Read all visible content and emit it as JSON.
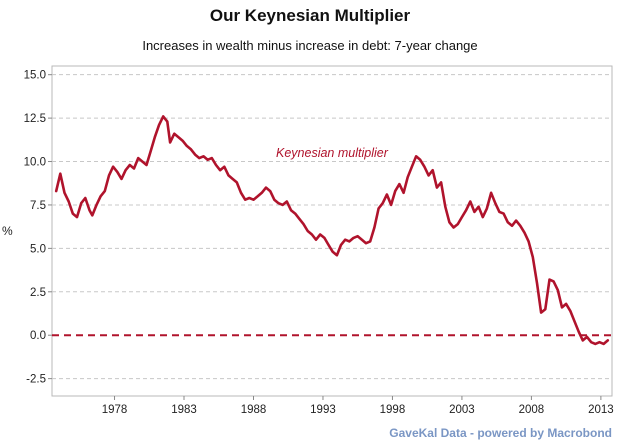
{
  "chart_data": {
    "type": "line",
    "title": "Our Keynesian Multiplier",
    "subtitle": "Increases in wealth  minus increase in debt: 7-year change",
    "ylabel": "%",
    "xlabel": "",
    "ylim": [
      -3.5,
      15.5
    ],
    "yticks": [
      "15.0",
      "12.5",
      "10.0",
      "7.5",
      "5.0",
      "2.5",
      "0.0",
      "-2.5"
    ],
    "ytick_values": [
      15,
      12.5,
      10,
      7.5,
      5,
      2.5,
      0,
      -2.5
    ],
    "xlim": [
      1973.5,
      2013.8
    ],
    "xticks": [
      "1978",
      "1983",
      "1988",
      "1993",
      "1998",
      "2003",
      "2008",
      "2013"
    ],
    "xtick_values": [
      1978,
      1983,
      1988,
      1993,
      1998,
      2003,
      2008,
      2013
    ],
    "grid": true,
    "reference_line": {
      "y": 0,
      "style": "dashed"
    },
    "annotation": "Keynesian multiplier",
    "source": "GaveKal Data - powered by Macrobond",
    "colors": {
      "series": "#b0132c",
      "grid": "#c8c8c8"
    },
    "series": [
      {
        "name": "Keynesian multiplier",
        "x": [
          1973.8,
          1974.1,
          1974.4,
          1974.7,
          1975.0,
          1975.3,
          1975.6,
          1975.9,
          1976.2,
          1976.4,
          1976.7,
          1977.0,
          1977.3,
          1977.6,
          1977.9,
          1978.2,
          1978.5,
          1978.8,
          1979.1,
          1979.4,
          1979.7,
          1980.0,
          1980.3,
          1980.6,
          1980.9,
          1981.2,
          1981.5,
          1981.8,
          1982.0,
          1982.3,
          1982.6,
          1982.9,
          1983.2,
          1983.5,
          1983.8,
          1984.1,
          1984.4,
          1984.7,
          1985.0,
          1985.3,
          1985.6,
          1985.9,
          1986.2,
          1986.5,
          1986.8,
          1987.1,
          1987.4,
          1987.7,
          1988.0,
          1988.3,
          1988.6,
          1988.9,
          1989.2,
          1989.5,
          1989.8,
          1990.1,
          1990.4,
          1990.7,
          1991.0,
          1991.3,
          1991.6,
          1991.9,
          1992.2,
          1992.5,
          1992.8,
          1993.1,
          1993.4,
          1993.7,
          1994.0,
          1994.3,
          1994.6,
          1994.9,
          1995.2,
          1995.5,
          1995.8,
          1996.1,
          1996.4,
          1996.7,
          1997.0,
          1997.3,
          1997.6,
          1997.9,
          1998.2,
          1998.5,
          1998.8,
          1999.1,
          1999.4,
          1999.7,
          2000.0,
          2000.3,
          2000.6,
          2000.9,
          2001.2,
          2001.5,
          2001.8,
          2002.1,
          2002.4,
          2002.7,
          2003.0,
          2003.3,
          2003.6,
          2003.9,
          2004.2,
          2004.5,
          2004.8,
          2005.1,
          2005.4,
          2005.7,
          2006.0,
          2006.3,
          2006.6,
          2006.9,
          2007.2,
          2007.5,
          2007.8,
          2008.1,
          2008.4,
          2008.7,
          2009.0,
          2009.3,
          2009.6,
          2009.9,
          2010.2,
          2010.5,
          2010.8,
          2011.1,
          2011.4,
          2011.7,
          2012.0,
          2012.3,
          2012.6,
          2012.9,
          2013.2,
          2013.5
        ],
        "values": [
          8.3,
          9.3,
          8.2,
          7.7,
          7.0,
          6.8,
          7.6,
          7.9,
          7.2,
          6.9,
          7.5,
          8.0,
          8.3,
          9.2,
          9.7,
          9.4,
          9.0,
          9.5,
          9.8,
          9.6,
          10.2,
          10.0,
          9.8,
          10.6,
          11.4,
          12.1,
          12.6,
          12.3,
          11.1,
          11.6,
          11.4,
          11.2,
          10.9,
          10.7,
          10.4,
          10.2,
          10.3,
          10.1,
          10.2,
          9.8,
          9.5,
          9.7,
          9.2,
          9.0,
          8.8,
          8.2,
          7.8,
          7.9,
          7.8,
          8.0,
          8.2,
          8.5,
          8.3,
          7.8,
          7.6,
          7.5,
          7.7,
          7.2,
          7.0,
          6.7,
          6.4,
          6.0,
          5.8,
          5.5,
          5.8,
          5.6,
          5.2,
          4.8,
          4.6,
          5.2,
          5.5,
          5.4,
          5.6,
          5.7,
          5.5,
          5.3,
          5.4,
          6.2,
          7.3,
          7.6,
          8.1,
          7.5,
          8.3,
          8.7,
          8.2,
          9.1,
          9.7,
          10.3,
          10.1,
          9.7,
          9.2,
          9.5,
          8.5,
          8.8,
          7.4,
          6.5,
          6.2,
          6.4,
          6.8,
          7.2,
          7.7,
          7.1,
          7.4,
          6.8,
          7.3,
          8.2,
          7.6,
          7.1,
          7.0,
          6.5,
          6.3,
          6.6,
          6.3,
          5.9,
          5.4,
          4.5,
          3.0,
          1.3,
          1.5,
          3.2,
          3.1,
          2.6,
          1.6,
          1.8,
          1.4,
          0.8,
          0.2,
          -0.3,
          -0.1,
          -0.4,
          -0.5,
          -0.4,
          -0.5,
          -0.3
        ]
      }
    ]
  }
}
